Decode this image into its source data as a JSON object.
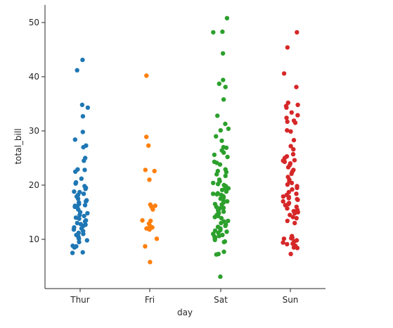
{
  "chart_data": {
    "type": "scatter",
    "title": "",
    "xlabel": "day",
    "ylabel": "total_bill",
    "categories": [
      "Thur",
      "Fri",
      "Sat",
      "Sun"
    ],
    "ylim": [
      0.5,
      53.5
    ],
    "yticks": [
      10,
      20,
      30,
      40,
      50
    ],
    "grid": false,
    "legend": "none",
    "series": [
      {
        "color": "#1f77b4",
        "values": [
          43.1,
          41.2,
          34.8,
          34.3,
          32.7,
          29.8,
          28.4,
          27.3,
          27.0,
          25.0,
          24.5,
          22.9,
          22.8,
          22.5,
          21.2,
          20.5,
          20.3,
          19.8,
          19.5,
          19.3,
          18.8,
          18.7,
          18.4,
          18.2,
          17.9,
          17.5,
          17.2,
          17.0,
          16.8,
          16.5,
          16.3,
          16.2,
          16.0,
          15.9,
          15.5,
          15.0,
          14.8,
          14.5,
          14.3,
          14.0,
          13.8,
          13.5,
          13.3,
          13.0,
          12.8,
          12.7,
          12.5,
          12.2,
          12.0,
          11.8,
          11.5,
          11.2,
          11.0,
          10.8,
          10.5,
          10.3,
          10.1,
          9.8,
          9.5,
          8.8,
          8.7,
          8.5,
          7.6,
          7.5
        ]
      },
      {
        "color": "#ff7f0e",
        "values": [
          40.2,
          28.9,
          27.3,
          22.8,
          22.6,
          21.0,
          16.4,
          16.2,
          16.0,
          15.5,
          13.5,
          13.4,
          12.9,
          12.5,
          12.2,
          12.0,
          11.8,
          10.1,
          8.7,
          5.8
        ]
      },
      {
        "color": "#2ca02c",
        "values": [
          50.8,
          48.3,
          48.2,
          44.3,
          39.4,
          38.7,
          38.1,
          35.8,
          32.8,
          31.3,
          30.4,
          30.1,
          29.0,
          28.2,
          27.0,
          26.9,
          26.4,
          26.0,
          25.6,
          25.2,
          24.3,
          24.1,
          23.8,
          22.9,
          22.6,
          22.4,
          22.0,
          21.7,
          21.0,
          20.7,
          20.4,
          20.2,
          20.0,
          19.8,
          19.5,
          19.4,
          19.1,
          18.8,
          18.5,
          18.4,
          18.3,
          18.2,
          18.0,
          17.8,
          17.6,
          17.5,
          17.3,
          17.0,
          16.8,
          16.5,
          16.4,
          16.0,
          15.8,
          15.7,
          15.4,
          15.1,
          15.0,
          14.8,
          14.5,
          14.3,
          14.1,
          13.9,
          13.4,
          13.3,
          13.0,
          12.7,
          12.5,
          12.3,
          12.0,
          11.7,
          11.6,
          11.4,
          11.2,
          11.0,
          10.8,
          10.6,
          10.5,
          10.3,
          10.1,
          9.9,
          9.6,
          9.5,
          7.7,
          7.3,
          7.2,
          3.1
        ]
      },
      {
        "color": "#d62728",
        "values": [
          48.2,
          45.4,
          40.6,
          38.1,
          35.2,
          34.8,
          34.6,
          34.3,
          33.4,
          32.9,
          32.4,
          31.9,
          31.7,
          31.5,
          30.1,
          29.9,
          28.3,
          27.2,
          26.6,
          25.7,
          25.3,
          25.0,
          24.6,
          24.5,
          24.3,
          24.0,
          23.7,
          23.3,
          22.8,
          22.5,
          22.1,
          21.5,
          21.0,
          20.7,
          20.4,
          20.1,
          19.8,
          19.5,
          19.2,
          18.7,
          18.4,
          18.2,
          17.9,
          17.8,
          17.6,
          17.4,
          17.3,
          17.0,
          16.7,
          16.5,
          16.3,
          16.0,
          15.7,
          15.4,
          15.2,
          15.0,
          14.8,
          14.5,
          14.1,
          13.9,
          13.4,
          13.0,
          10.6,
          10.3,
          10.2,
          10.1,
          9.8,
          9.6,
          9.4,
          9.2,
          9.1,
          8.8,
          8.5,
          8.4,
          7.3
        ]
      }
    ]
  }
}
